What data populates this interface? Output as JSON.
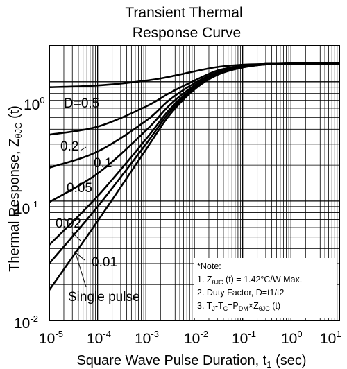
{
  "chart_data": {
    "type": "line",
    "title_lines": [
      "Transient  Thermal",
      "Response Curve"
    ],
    "xlabel": "Square Wave Pulse Duration, t",
    "xlabel_sub": "1",
    "xlabel_unit": " (sec)",
    "ylabel": "Thermal Response, Z",
    "ylabel_sub": "θJC",
    "ylabel_unit": " (t)",
    "xscale": "log",
    "yscale": "log",
    "xlim": [
      1e-05,
      10
    ],
    "ylim": [
      0.01,
      2
    ],
    "grid": true,
    "x_tick_labels": [
      {
        "base": "10",
        "exp": "-5",
        "value": 1e-05
      },
      {
        "base": "10",
        "exp": "-4",
        "value": 0.0001
      },
      {
        "base": "10",
        "exp": "-3",
        "value": 0.001
      },
      {
        "base": "10",
        "exp": "-2",
        "value": 0.01
      },
      {
        "base": "10",
        "exp": "-1",
        "value": 0.1
      },
      {
        "base": "10",
        "exp": "0",
        "value": 1
      },
      {
        "base": "10",
        "exp": "1",
        "value": 10
      }
    ],
    "y_tick_labels": [
      {
        "base": "10",
        "exp": "-2",
        "value": 0.01
      },
      {
        "base": "10",
        "exp": "-1",
        "value": 0.1
      },
      {
        "base": "10",
        "exp": "0",
        "value": 1
      }
    ],
    "series": [
      {
        "name": "D=0.5",
        "x": [
          1e-05,
          0.0001,
          0.001,
          0.003,
          0.01,
          0.03,
          0.1,
          0.3,
          1,
          3,
          10
        ],
        "y": [
          0.9,
          0.93,
          1.02,
          1.1,
          1.22,
          1.33,
          1.39,
          1.41,
          1.42,
          1.42,
          1.42
        ]
      },
      {
        "name": "0.2",
        "x": [
          1e-05,
          0.0001,
          0.001,
          0.003,
          0.01,
          0.03,
          0.1,
          0.3,
          1,
          3,
          10
        ],
        "y": [
          0.36,
          0.42,
          0.62,
          0.8,
          1.02,
          1.24,
          1.36,
          1.41,
          1.42,
          1.42,
          1.42
        ]
      },
      {
        "name": "0.1",
        "x": [
          1e-05,
          0.0001,
          0.001,
          0.003,
          0.01,
          0.03,
          0.1,
          0.3,
          1,
          3,
          10
        ],
        "y": [
          0.19,
          0.26,
          0.47,
          0.7,
          0.97,
          1.2,
          1.35,
          1.41,
          1.42,
          1.42,
          1.42
        ]
      },
      {
        "name": "0.05",
        "x": [
          1e-05,
          0.0001,
          0.001,
          0.003,
          0.01,
          0.03,
          0.1,
          0.3,
          1,
          3,
          10
        ],
        "y": [
          0.098,
          0.17,
          0.39,
          0.63,
          0.93,
          1.18,
          1.34,
          1.4,
          1.42,
          1.42,
          1.42
        ]
      },
      {
        "name": "0.02",
        "x": [
          1e-05,
          0.0001,
          0.001,
          0.003,
          0.01,
          0.03,
          0.1,
          0.3,
          1,
          3,
          10
        ],
        "y": [
          0.043,
          0.11,
          0.33,
          0.58,
          0.9,
          1.16,
          1.33,
          1.4,
          1.42,
          1.42,
          1.42
        ]
      },
      {
        "name": "0.01",
        "x": [
          1e-05,
          0.0001,
          0.001,
          0.003,
          0.01,
          0.03,
          0.1,
          0.3,
          1,
          3,
          10
        ],
        "y": [
          0.03,
          0.09,
          0.3,
          0.55,
          0.88,
          1.15,
          1.32,
          1.4,
          1.42,
          1.42,
          1.42
        ]
      },
      {
        "name": "Single pulse",
        "x": [
          1e-05,
          0.0001,
          0.001,
          0.003,
          0.01,
          0.03,
          0.1,
          0.3,
          1,
          3,
          10
        ],
        "y": [
          0.018,
          0.068,
          0.27,
          0.52,
          0.86,
          1.14,
          1.32,
          1.4,
          1.42,
          1.42,
          1.42
        ]
      }
    ],
    "curve_labels": [
      {
        "text": "D=0.5",
        "series": "D=0.5"
      },
      {
        "text": "0.2",
        "series": "0.2"
      },
      {
        "text": "0.1",
        "series": "0.1"
      },
      {
        "text": "0.05",
        "series": "0.05"
      },
      {
        "text": "0.02",
        "series": "0.02"
      },
      {
        "text": "0.01",
        "series": "0.01"
      },
      {
        "text": "Single pulse",
        "series": "Single pulse"
      }
    ],
    "note": {
      "heading": "*Note:",
      "line1_prefix": "1. Z",
      "line1_sub": "θJC",
      "line1_suffix": " (t) = 1.42°C/W Max.",
      "line2": "2. Duty Factor, D=t1/t2",
      "line3_a": "3. T",
      "line3_a_sub": "J",
      "line3_b": "-T",
      "line3_b_sub": "C",
      "line3_c": "=P",
      "line3_c_sub": "DM",
      "line3_d": "×Z",
      "line3_d_sub": "θJC",
      "line3_e": " (t)"
    }
  }
}
